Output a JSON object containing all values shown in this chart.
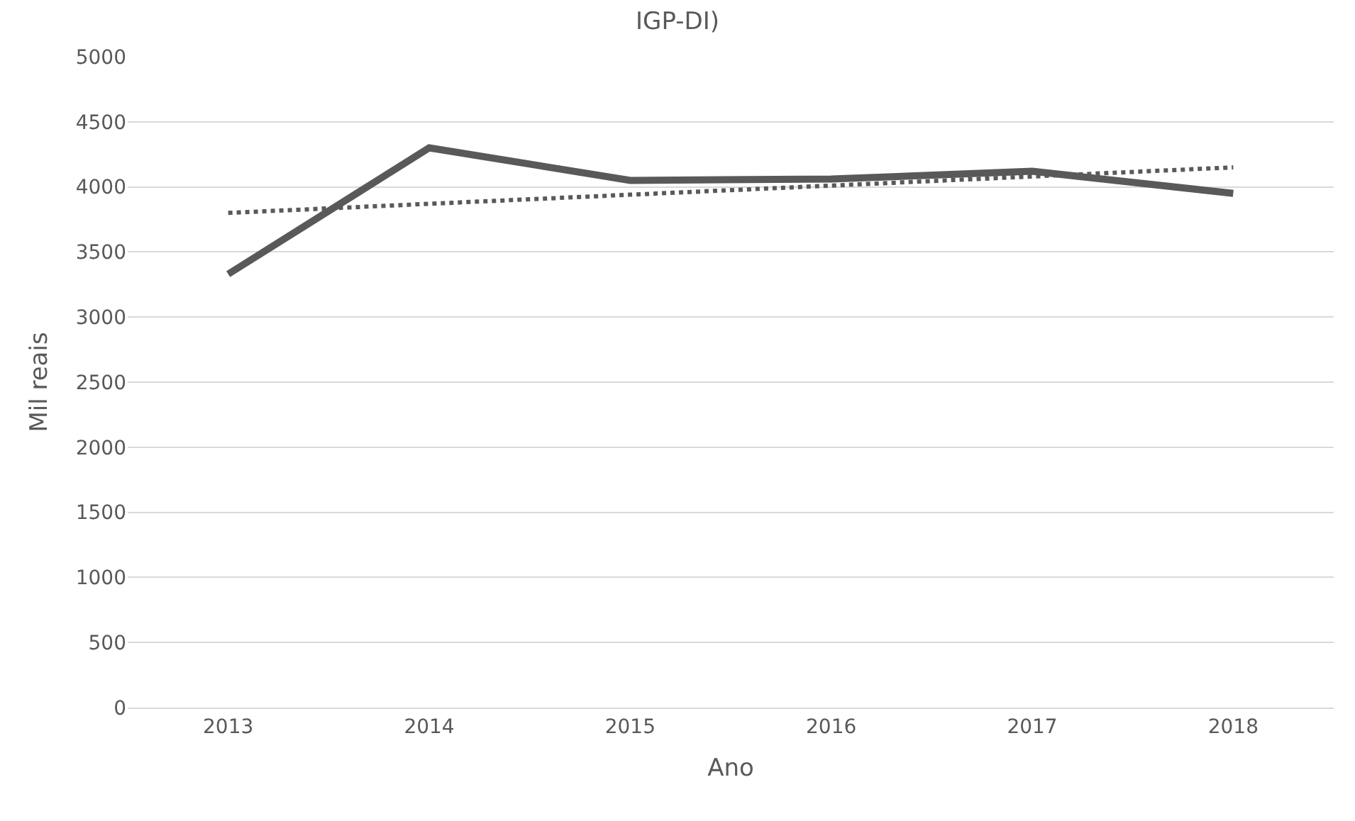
{
  "chart_data": {
    "type": "line",
    "title": "IGP-DI)",
    "xlabel": "Ano",
    "ylabel": "Mil reais",
    "categories": [
      "2013",
      "2014",
      "2015",
      "2016",
      "2017",
      "2018"
    ],
    "series": [
      {
        "color": "#595959",
        "line_style": "solid",
        "values": [
          3330,
          4300,
          4050,
          4060,
          4120,
          3950
        ]
      },
      {
        "color": "#595959",
        "line_style": "dotted",
        "values": [
          3800,
          3870,
          3940,
          4010,
          4080,
          4150
        ]
      }
    ],
    "ylim": [
      0,
      5000
    ],
    "yticks": [
      0,
      500,
      1000,
      1500,
      2000,
      2500,
      3000,
      3500,
      4000,
      4500,
      5000
    ],
    "grid": "y",
    "marker": "none"
  }
}
